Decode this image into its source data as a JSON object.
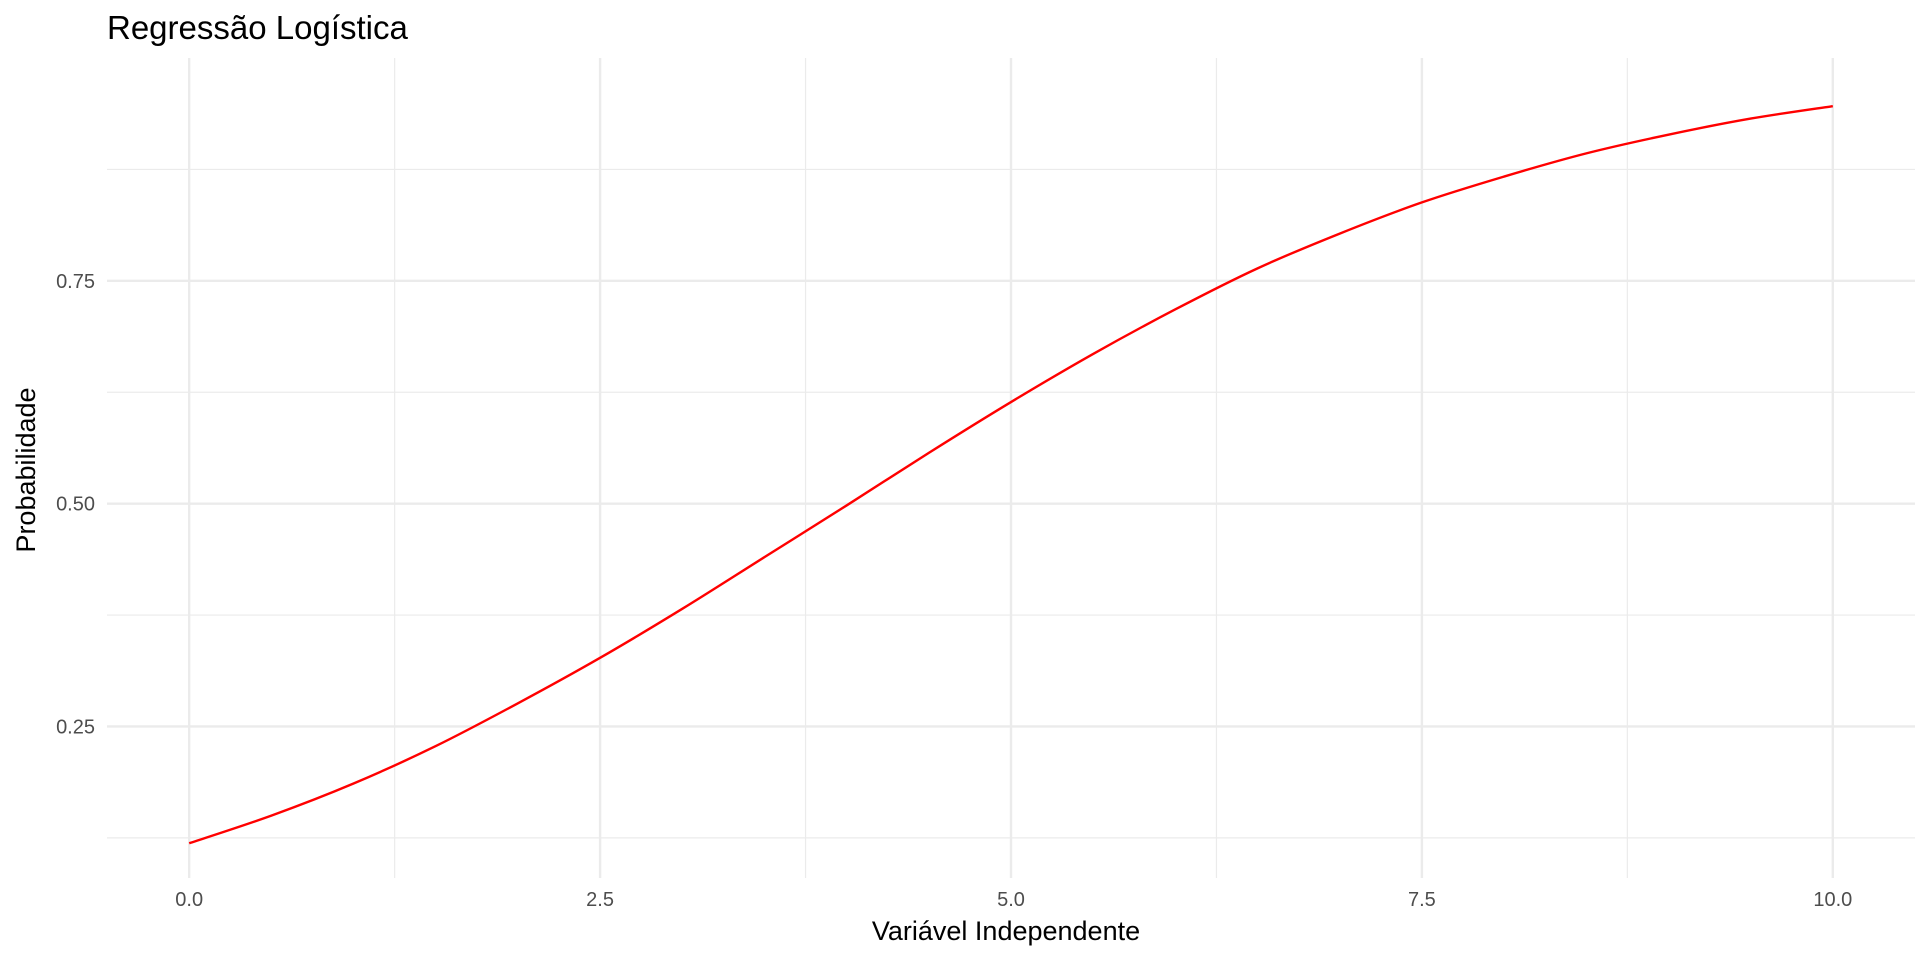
{
  "chart_data": {
    "type": "line",
    "title": "Regressão Logística",
    "xlabel": "Variável Independente",
    "ylabel": "Probabilidade",
    "xlim": [
      -0.5,
      10.5
    ],
    "ylim": [
      0.08,
      1.0
    ],
    "x_ticks": [
      0,
      2.5,
      5,
      7.5,
      10
    ],
    "x_tick_labels": [
      "0.0",
      "2.5",
      "5.0",
      "7.5",
      "10.0"
    ],
    "x_minor_ticks": [
      1.25,
      3.75,
      6.25,
      8.75
    ],
    "y_ticks": [
      0.25,
      0.5,
      0.75
    ],
    "y_tick_labels": [
      "0.25",
      "0.50",
      "0.75"
    ],
    "y_minor_ticks": [
      0.125,
      0.375,
      0.625,
      0.875
    ],
    "grid": true,
    "legend": "none",
    "series": [
      {
        "color": "#ff0000",
        "x": [
          0,
          0.5,
          1,
          1.5,
          2,
          2.5,
          3,
          3.5,
          4,
          4.5,
          5,
          5.5,
          6,
          6.5,
          7,
          7.5,
          8,
          8.5,
          9,
          9.5,
          10
        ],
        "y": [
          0.119,
          0.15,
          0.186,
          0.228,
          0.276,
          0.327,
          0.382,
          0.44,
          0.498,
          0.557,
          0.614,
          0.668,
          0.718,
          0.764,
          0.803,
          0.838,
          0.867,
          0.893,
          0.914,
          0.932,
          0.946
        ]
      }
    ]
  }
}
